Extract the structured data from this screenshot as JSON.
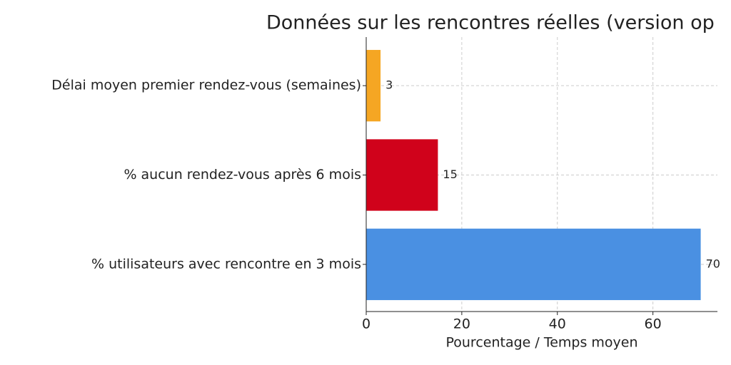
{
  "chart_data": {
    "type": "barh",
    "title": "Données sur les rencontres réelles (version op",
    "categories": [
      "Délai moyen premier rendez-vous (semaines)",
      "% aucun rendez-vous après 6 mois",
      "% utilisateurs avec rencontre en 3 mois"
    ],
    "values": [
      3,
      15,
      70
    ],
    "colors": [
      "#f5a623",
      "#d0021b",
      "#4a90e2"
    ],
    "xlabel": "Pourcentage / Temps moyen",
    "xlim": [
      0,
      73.5
    ],
    "xticks": [
      0,
      20,
      40,
      60
    ],
    "grid": true
  }
}
